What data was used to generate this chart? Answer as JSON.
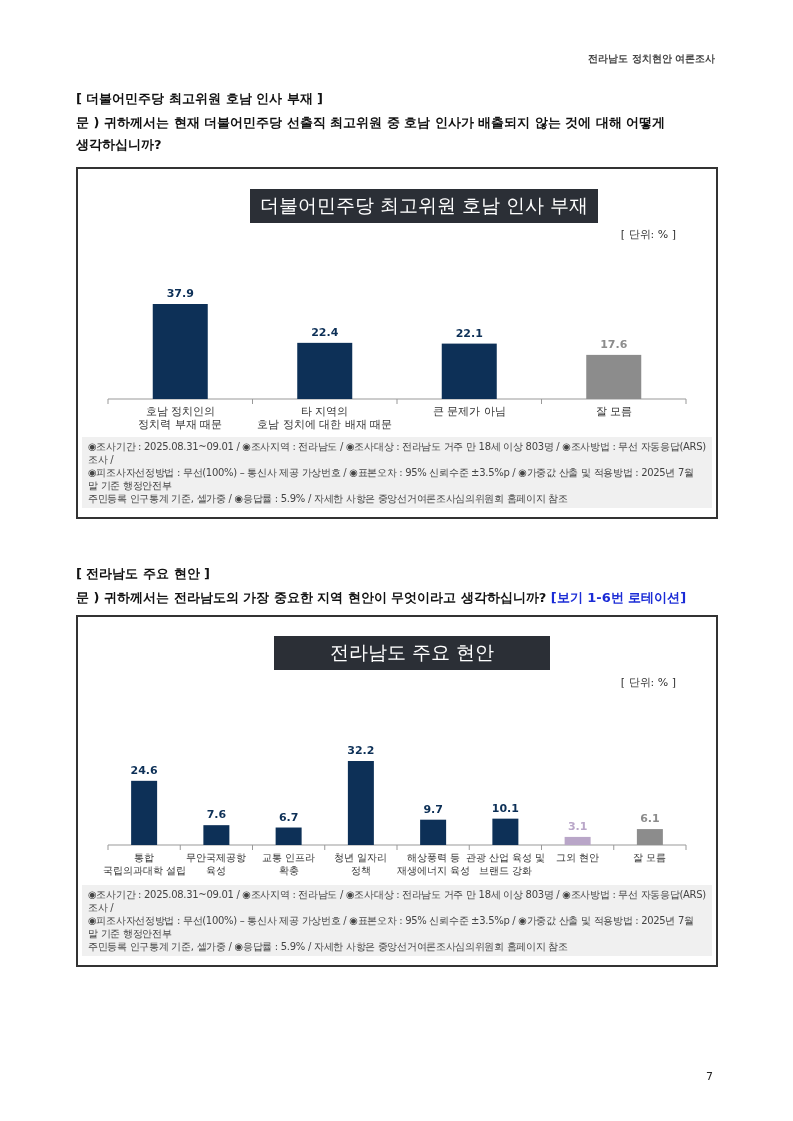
{
  "chart_data": [
    {
      "type": "bar",
      "title": "더불어민주당 최고위원 호남 인사 부재",
      "categories": [
        "호남 정치인의\n정치력 부재 때문",
        "타 지역의\n호남 정치에 대한 배재 때문",
        "큰 문제가 아님",
        "잘 모름"
      ],
      "values": [
        37.9,
        22.4,
        22.1,
        17.6
      ],
      "colors": [
        "#0d3057",
        "#0d3057",
        "#0d3057",
        "#8c8c8c"
      ],
      "data_labels": true,
      "annotations": [
        "[ 더불어민주당 최고위원 호남 인사 부재 ]",
        "문 )  귀하께서는 현재 더불어민주당 선출직 최고위원 중 호남 인사가 배출되지 않는 것에 대해 어떻게\n생각하십니까?",
        "[ 단위: % ]",
        "◉조사기간 : 2025.08.31~09.01 / ◉조사지역 : 전라남도 / ◉조사대상 : 전라남도 거주 만 18세 이상 803명 / ◉조사방법 : 무선 자동응답(ARS) 조사 /\n◉피조사자선정방법 : 무선(100%) – 통신사 제공 가상번호 / ◉표본오차 : 95% 신뢰수준 ±3.5%p / ◉가중값 산출 및 적용방법 : 2025년 7월 말 기준 행정안전부\n주민등록 인구통계 기준, 셀가중 / ◉응답률 : 5.9% / 자세한 사항은 중앙선거여론조사심의위원회 홈페이지 참조",
        "전라남도 정치현안 여론조사"
      ]
    },
    {
      "type": "bar",
      "title": "전라남도 주요 현안",
      "categories": [
        "통합\n국립의과대학 설립",
        "무안국제공항\n육성",
        "교통 인프라\n확충",
        "청년 일자리\n정책",
        "해상풍력 등\n재생에너지 육성",
        "관광 산업 육성 및\n브랜드 강화",
        "그외 현안",
        "잘 모름"
      ],
      "values": [
        24.6,
        7.6,
        6.7,
        32.2,
        9.7,
        10.1,
        3.1,
        6.1
      ],
      "colors": [
        "#0d3057",
        "#0d3057",
        "#0d3057",
        "#0d3057",
        "#0d3057",
        "#0d3057",
        "#b9a6c8",
        "#8c8c8c"
      ],
      "data_labels": true,
      "annotations": [
        "[ 전라남도 주요 현안 ]",
        "문 )  귀하께서는 전라남도의 가장 중요한 지역 현안이 무엇이라고 생각하십니까?",
        "[보기 1-6번 로테이션]",
        "[ 단위: % ]",
        "◉조사기간 : 2025.08.31~09.01 / ◉조사지역 : 전라남도 / ◉조사대상 : 전라남도 거주 만 18세 이상 803명 / ◉조사방법 : 무선 자동응답(ARS) 조사 /\n◉피조사자선정방법 : 무선(100%) – 통신사 제공 가상번호 / ◉표본오차 : 95% 신뢰수준 ±3.5%p / ◉가중값 산출 및 적용방법 : 2025년 7월 말 기준 행정안전부\n주민등록 인구통계 기준, 셀가중 / ◉응답률 : 5.9% / 자세한 사항은 중앙선거여론조사심의위원회 홈페이지 참조",
        "7"
      ]
    }
  ]
}
